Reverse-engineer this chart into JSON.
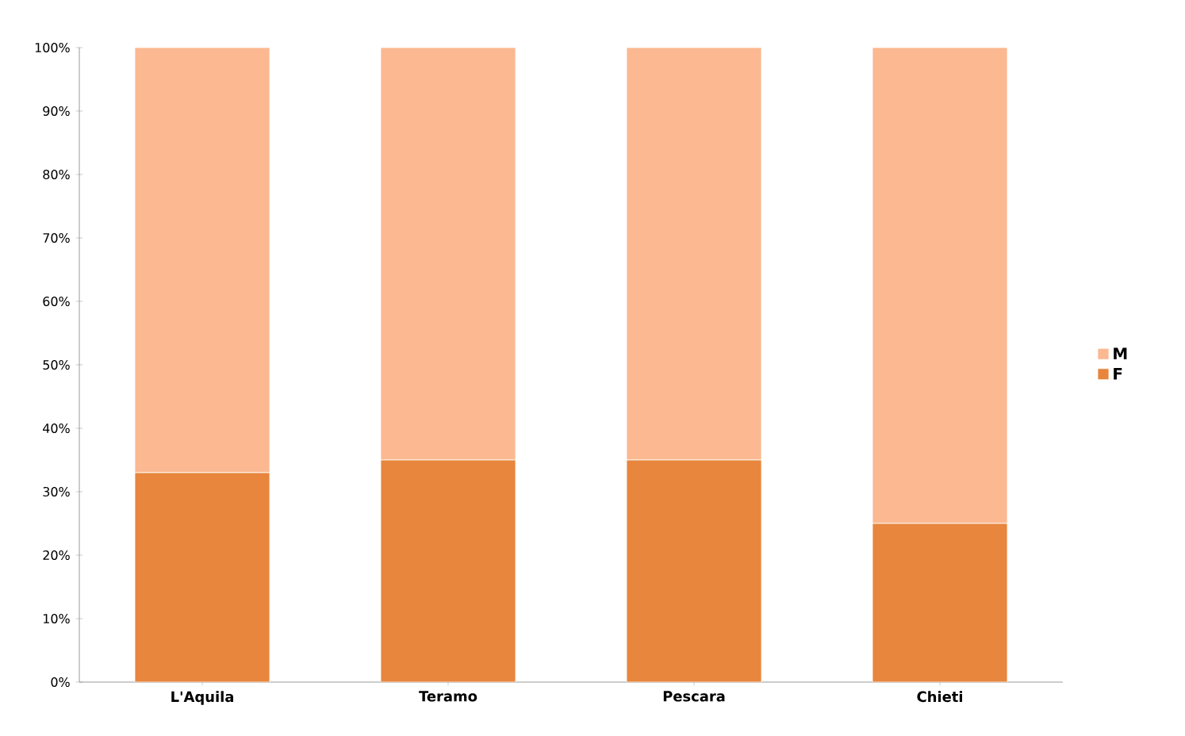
{
  "chart_data": {
    "type": "bar",
    "stacked": true,
    "categories": [
      "L'Aquila",
      "Teramo",
      "Pescara",
      "Chieti"
    ],
    "series": [
      {
        "name": "F",
        "color": "#e8863d",
        "values": [
          33,
          35,
          35,
          25
        ]
      },
      {
        "name": "M",
        "color": "#fbb891",
        "values": [
          67,
          65,
          65,
          75
        ]
      }
    ],
    "ylim": [
      0,
      100
    ],
    "yticks": [
      {
        "value": 0,
        "label": "0%"
      },
      {
        "value": 10,
        "label": "10%"
      },
      {
        "value": 20,
        "label": "20%"
      },
      {
        "value": 30,
        "label": "30%"
      },
      {
        "value": 40,
        "label": "40%"
      },
      {
        "value": 50,
        "label": "50%"
      },
      {
        "value": 60,
        "label": "60%"
      },
      {
        "value": 70,
        "label": "70%"
      },
      {
        "value": 80,
        "label": "80%"
      },
      {
        "value": 90,
        "label": "90%"
      },
      {
        "value": 100,
        "label": "100%"
      }
    ],
    "grid": false,
    "legend": "right"
  }
}
